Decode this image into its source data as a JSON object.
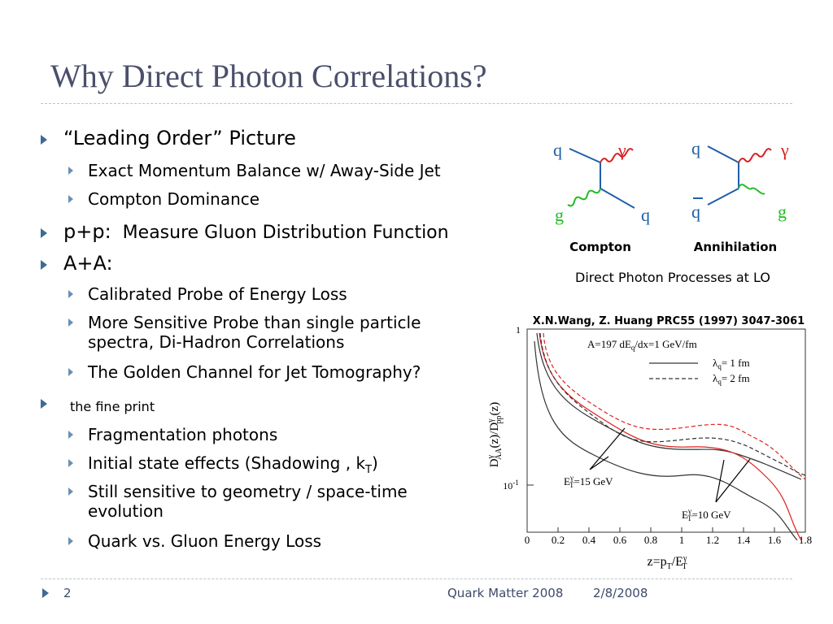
{
  "header": {
    "title": "Why Direct Photon Correlations?"
  },
  "bullets": [
    {
      "text": "“Leading Order” Picture",
      "sub": [
        "Exact Momentum Balance w/ Away-Side Jet",
        "Compton Dominance"
      ]
    },
    {
      "text": "p+p:",
      "note": "Measure Gluon Distribution Function"
    },
    {
      "text": "A+A:",
      "sub": [
        "Calibrated Probe of Energy Loss",
        "More Sensitive Probe than single particle spectra, Di-Hadron Correlations",
        "The Golden Channel for Jet Tomography?"
      ]
    },
    {
      "text": "the fine print",
      "sub": [
        "Fragmentation photons",
        {
          "text": "Initial state effects (Shadowing , k",
          "subscript": "T",
          "after": ")"
        },
        "Still sensitive to geometry / space-time evolution",
        "Quark vs. Gluon Energy Loss"
      ]
    }
  ],
  "diagram": {
    "processes": [
      {
        "name": "Compton",
        "labels": [
          "q",
          "γ",
          "g",
          "q"
        ]
      },
      {
        "name": "Annihilation",
        "labels": [
          "q",
          "γ",
          "q",
          "g"
        ]
      }
    ],
    "caption": "Direct Photon Processes at LO"
  },
  "figure": {
    "citation": "X.N.Wang,  Z. Huang PRC55 (1997) 3047-3061",
    "legend_title": {
      "main": "A=197  dE",
      "sub": "q",
      "after": "/dx=1 GeV/fm"
    },
    "legend": [
      {
        "main": "λ",
        "sub": "q",
        "after": "= 1 fm"
      },
      {
        "main": "λ",
        "sub": "q",
        "after": "= 2 fm"
      }
    ],
    "annotations": [
      {
        "main": "E",
        "sup": "γ",
        "sub": "T",
        "after": "=15 GeV"
      },
      {
        "main": "E",
        "sup": "γ",
        "sub": "T",
        "after": "=10 GeV"
      }
    ],
    "y_label": [
      "D",
      "γ",
      "AA",
      "(z)/D",
      "γ",
      "pp",
      "(z)"
    ],
    "x_label": [
      "z=p",
      "T",
      "/E",
      "γ",
      "T"
    ],
    "yticks": [
      {
        "main": "1"
      },
      {
        "main": "10",
        "sup": "-1"
      }
    ],
    "xticks": [
      "0",
      "0.2",
      "0.4",
      "0.6",
      "0.8",
      "1",
      "1.2",
      "1.4",
      "1.6",
      "1.8"
    ]
  },
  "footer": {
    "page": "2",
    "event": "Quark Matter 2008",
    "date": "2/8/2008"
  }
}
